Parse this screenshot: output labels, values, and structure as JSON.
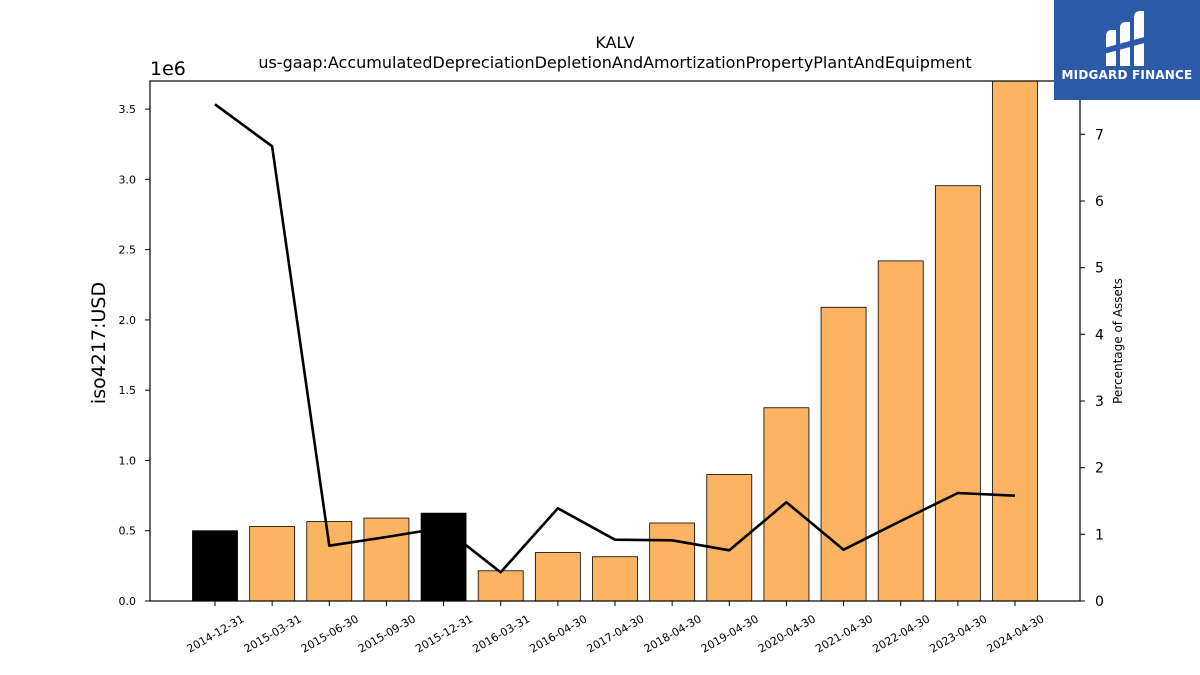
{
  "brand": {
    "name": "MIDGARD FINANCE",
    "colors": {
      "background": "#2c5aa8",
      "text": "#ffffff"
    }
  },
  "chart_data": {
    "type": "bar",
    "title": "KALV",
    "subtitle": "us-gaap:AccumulatedDepreciationDepletionAndAmortizationPropertyPlantAndEquipment",
    "ylabel": "iso4217:USD",
    "ylabel_right": "Percentage of Assets",
    "scale_label": "1e6",
    "categories": [
      "2014-12-31",
      "2015-03-31",
      "2015-06-30",
      "2015-09-30",
      "2015-12-31",
      "2016-03-31",
      "2016-04-30",
      "2017-04-30",
      "2018-04-30",
      "2019-04-30",
      "2020-04-30",
      "2021-04-30",
      "2022-04-30",
      "2023-04-30",
      "2024-04-30"
    ],
    "series": [
      {
        "type": "bar",
        "axis": "left",
        "values": [
          500000,
          530000,
          565000,
          590000,
          625000,
          215000,
          345000,
          315000,
          555000,
          900000,
          1375000,
          2090000,
          2420000,
          2955000,
          3720000
        ],
        "bar_colors": [
          "#000000",
          "#fdb462",
          "#fdb462",
          "#fdb462",
          "#000000",
          "#fdb462",
          "#fdb462",
          "#fdb462",
          "#fdb462",
          "#fdb462",
          "#fdb462",
          "#fdb462",
          "#fdb462",
          "#fdb462",
          "#fdb462"
        ]
      },
      {
        "type": "line",
        "axis": "right",
        "color": "#000000",
        "values": [
          7.45,
          6.82,
          0.83,
          0.96,
          1.1,
          0.43,
          1.39,
          0.92,
          0.91,
          0.76,
          1.48,
          0.77,
          1.2,
          1.62,
          1.58
        ]
      }
    ],
    "ylim": [
      0,
      3700000
    ],
    "yticks": [
      0,
      500000,
      1000000,
      1500000,
      2000000,
      2500000,
      3000000,
      3500000
    ],
    "ytick_labels": [
      "0.0",
      "0.5",
      "1.0",
      "1.5",
      "2.0",
      "2.5",
      "3.0",
      "3.5"
    ],
    "ylim_right": [
      0,
      7.8
    ],
    "yticks_right": [
      0,
      1,
      2,
      3,
      4,
      5,
      6,
      7
    ],
    "ytick_labels_right": [
      "0",
      "1",
      "2",
      "3",
      "4",
      "5",
      "6",
      "7"
    ],
    "grid": false
  }
}
